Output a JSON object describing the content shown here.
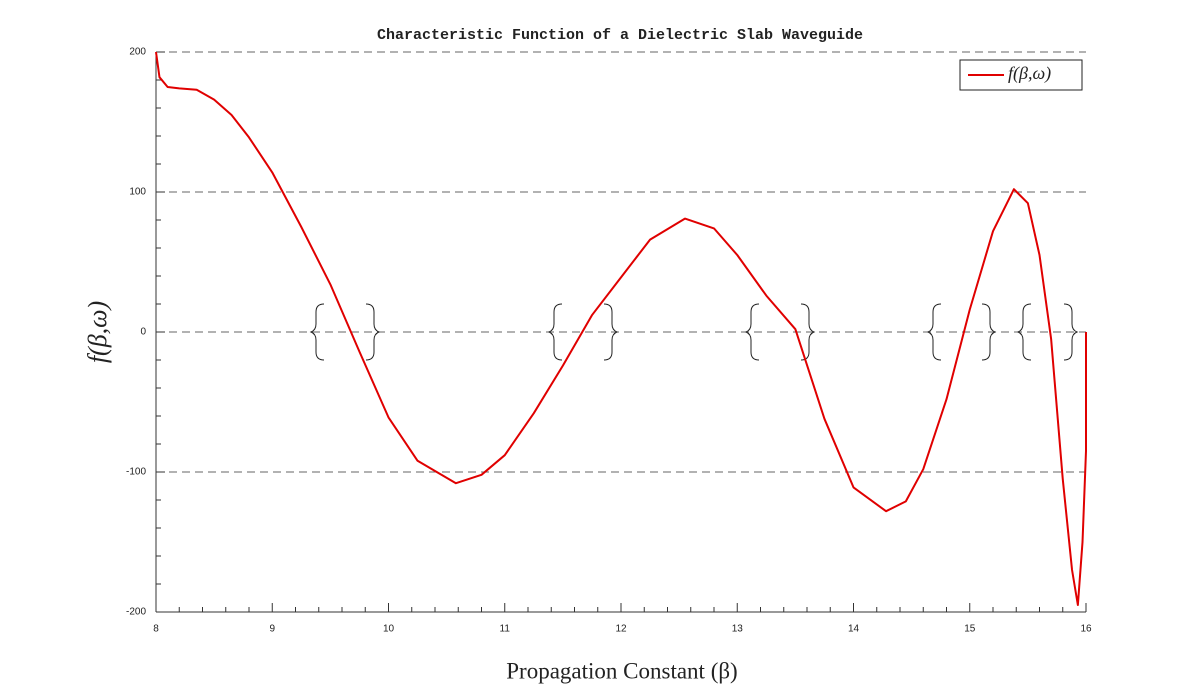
{
  "chart_data": {
    "type": "line",
    "title": "Characteristic Function of a Dielectric Slab Waveguide",
    "x_label": "Propagation Constant (β)",
    "y_label": "f(β,ω)",
    "x": [
      8,
      8.03,
      8.1,
      8.2,
      8.35,
      8.5,
      8.65,
      8.8,
      9,
      9.25,
      9.5,
      9.75,
      10,
      10.25,
      10.58,
      10.8,
      11,
      11.25,
      11.5,
      11.75,
      12,
      12.25,
      12.55,
      12.8,
      13,
      13.25,
      13.5,
      13.75,
      14,
      14.28,
      14.45,
      14.6,
      14.8,
      15,
      15.2,
      15.38,
      15.5,
      15.6,
      15.7,
      15.8,
      15.88,
      15.93,
      15.97,
      16,
      16
    ],
    "series": [
      {
        "name": "f(β,ω)",
        "color": "#e00000",
        "values": [
          200,
          182,
          175,
          174,
          173,
          166,
          155,
          139,
          114,
          75,
          34,
          -14,
          -61,
          -92,
          -108,
          -102,
          -88,
          -58,
          -24,
          12,
          39,
          66,
          81,
          74,
          55,
          26,
          2,
          -62,
          -111,
          -128,
          -121,
          -98,
          -48,
          16,
          72,
          102,
          92,
          55,
          -5,
          -105,
          -170,
          -195,
          -150,
          -85,
          0
        ]
      }
    ],
    "xlim": [
      8,
      16
    ],
    "ylim": [
      -200,
      200
    ],
    "xticks": [
      8,
      9,
      10,
      11,
      12,
      13,
      14,
      15,
      16
    ],
    "yticks": [
      -200,
      -100,
      0,
      100,
      200
    ],
    "grid": true,
    "legend": "upper right"
  }
}
